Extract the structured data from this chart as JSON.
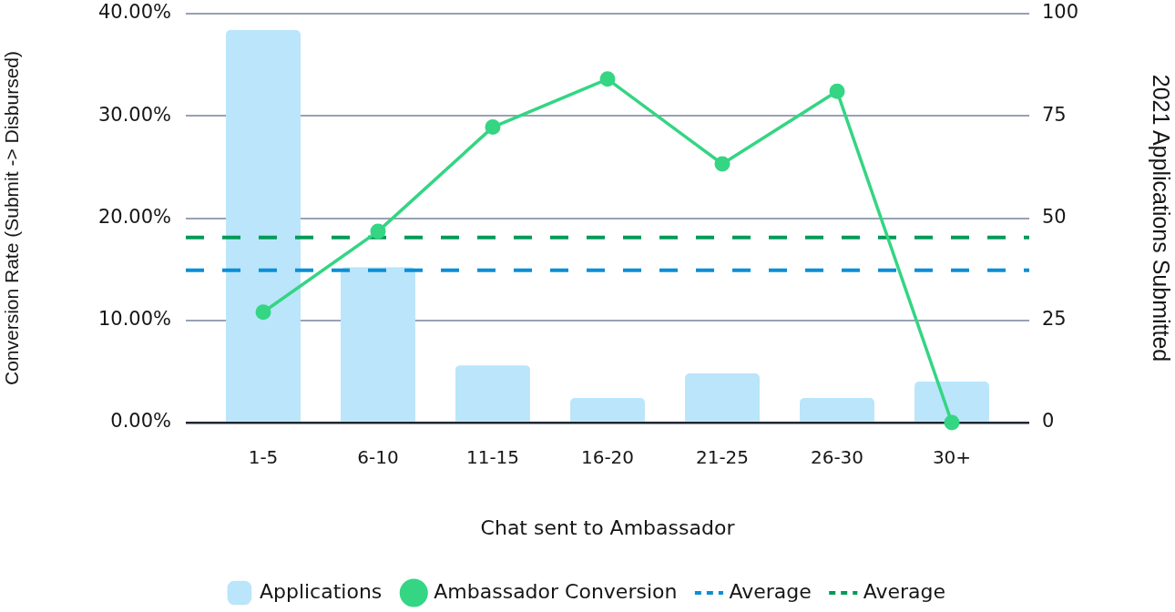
{
  "chart_data": {
    "type": "bar",
    "xlabel": "Chat sent to Ambassador",
    "ylabel": "Conversion Rate (Submit -> Disbursed)",
    "y2label": "2021 Applications Submitted",
    "categories": [
      "1-5",
      "6-10",
      "11-15",
      "16-20",
      "21-25",
      "26-30",
      "30+"
    ],
    "series": [
      {
        "name": "Applications",
        "axis": "y2",
        "color": "#bae5fb",
        "values": [
          96,
          38,
          14,
          6,
          12,
          6,
          10
        ]
      },
      {
        "name": "Ambassador Conversion",
        "type": "line",
        "color": "#34d583",
        "values": [
          10.8,
          18.7,
          28.9,
          33.6,
          25.3,
          32.4,
          0
        ]
      }
    ],
    "ylim": [
      0,
      40
    ],
    "yticks": [
      {
        "value": 0,
        "label": "0.00%"
      },
      {
        "value": 10,
        "label": "10.00%"
      },
      {
        "value": 20,
        "label": "20.00%"
      },
      {
        "value": 30,
        "label": "30.00%"
      },
      {
        "value": 40,
        "label": "40.00%"
      }
    ],
    "y2lim": [
      0,
      100
    ],
    "y2ticks": [
      0,
      25,
      50,
      75,
      100
    ],
    "ref_lines": [
      {
        "axis": "y",
        "value": 14.9,
        "label": "Average",
        "color": "#0a8fd6",
        "line_style": "dashed"
      },
      {
        "axis": "y",
        "value": 18.1,
        "label": "Average",
        "color": "#009a57",
        "line_style": "dashed"
      }
    ],
    "grid": "y",
    "legend": "bottom",
    "marker": "circle"
  }
}
